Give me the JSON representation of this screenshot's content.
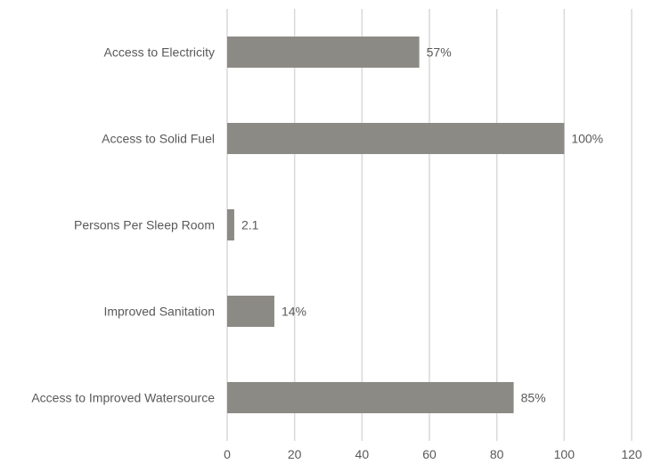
{
  "chart_data": {
    "type": "bar",
    "orientation": "horizontal",
    "categories": [
      "Access to Electricity",
      "Access to Solid  Fuel",
      "Persons Per Sleep Room",
      "Improved Sanitation",
      "Access to Improved Watersource"
    ],
    "values": [
      57,
      100,
      2.1,
      14,
      85
    ],
    "data_labels": [
      "57%",
      "100%",
      "2.1",
      "14%",
      "85%"
    ],
    "x_ticks": [
      "0",
      "20",
      "40",
      "60",
      "80",
      "100",
      "120"
    ],
    "xlim": [
      0,
      120
    ],
    "grid": "vertical",
    "legend": "none",
    "colors": {
      "bar": "#8c8a84",
      "grid": "#d9d9d9",
      "text": "#595959"
    }
  }
}
